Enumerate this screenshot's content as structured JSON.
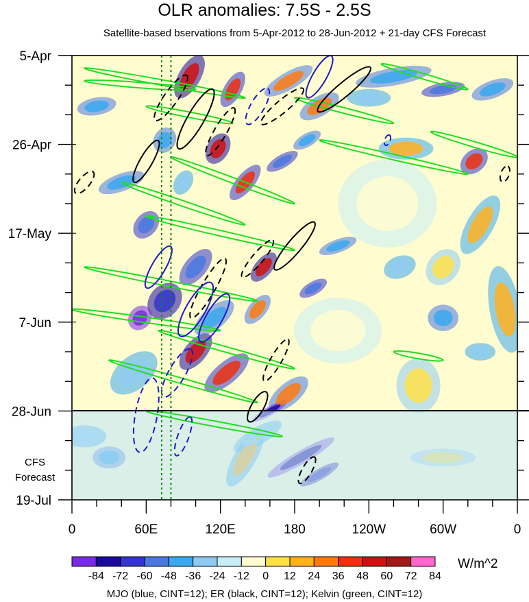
{
  "title": "OLR anomalies: 7.5S - 2.5S",
  "subtitle": "Satellite-based bservations from 5-Apr-2012 to 28-Jun-2012 + 21-day CFS Forecast",
  "forecast_label_line1": "CFS",
  "forecast_label_line2": "Forecast",
  "units": "W/m^2",
  "footer": "MJO (blue, CINT=12); ER (black, CINT=12); Kelvin (green, CINT=12)",
  "colors": {
    "mjo": "#1a1acc",
    "er": "#000000",
    "kelvin": "#22dd22",
    "ref_lines": "#118811"
  },
  "chart_data": {
    "type": "heatmap",
    "title": "OLR anomalies: 7.5S - 2.5S",
    "y_axis": {
      "reversed": true,
      "range": [
        "5-Apr-2012",
        "19-Jul-2012"
      ],
      "tick_labels": [
        "5-Apr",
        "26-Apr",
        "17-May",
        "7-Jun",
        "28-Jun",
        "19-Jul"
      ],
      "tick_days": [
        0,
        21,
        42,
        63,
        84,
        105
      ]
    },
    "x_axis": {
      "range": [
        0,
        360
      ],
      "tick_labels": [
        "0",
        "60E",
        "120E",
        "180",
        "120W",
        "60W",
        "0"
      ],
      "tick_lon": [
        0,
        60,
        120,
        180,
        240,
        300,
        360
      ]
    },
    "observation_end": "28-Jun",
    "forecast_start": "28-Jun",
    "forecast_end": "19-Jul",
    "reference_longitudes": [
      72.5,
      80
    ],
    "colorbar": {
      "levels": [
        "-84",
        "-72",
        "-60",
        "-48",
        "-36",
        "-24",
        "-12",
        "0",
        "12",
        "24",
        "36",
        "48",
        "60",
        "72",
        "84"
      ],
      "colors": [
        "#7a2be2",
        "#1a0a99",
        "#3535cc",
        "#4a78e0",
        "#3aa8ee",
        "#8fcaf2",
        "#c8eef8",
        "#fffcd0",
        "#ffe04a",
        "#ffb020",
        "#ff7a10",
        "#ee3010",
        "#d01010",
        "#a01818",
        "#ff66cc"
      ],
      "units": "W/m^2"
    },
    "overlays": [
      {
        "name": "MJO (blue, CINT=12)",
        "color": "#1a1acc"
      },
      {
        "name": "ER (black, CINT=12)",
        "color": "#000000"
      },
      {
        "name": "Kelvin (green, CINT=12)",
        "color": "#22dd22"
      }
    ]
  }
}
